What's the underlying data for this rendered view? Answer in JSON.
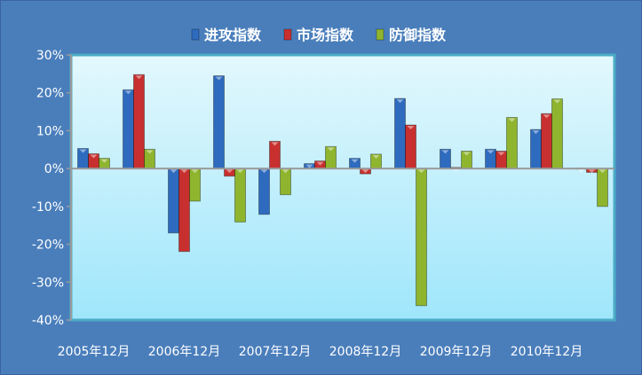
{
  "chart_data": {
    "type": "bar",
    "title": "",
    "xlabel": "",
    "ylabel": "",
    "categories": [
      "2005年12月",
      "",
      "2006年12月",
      "",
      "2007年12月",
      "",
      "2008年12月",
      "",
      "2009年12月",
      "",
      "2010年12月",
      ""
    ],
    "series": [
      {
        "name": "进攻指数",
        "color": "#2e6bbf",
        "values": [
          5.3,
          20.8,
          -17.0,
          24.5,
          -12.1,
          1.3,
          2.7,
          18.5,
          5.1,
          5.1,
          10.3,
          0.1
        ]
      },
      {
        "name": "市场指数",
        "color": "#c8302f",
        "values": [
          3.9,
          24.8,
          -21.9,
          -2.0,
          7.2,
          2.0,
          -1.4,
          11.5,
          0.3,
          4.6,
          14.5,
          -1.0
        ]
      },
      {
        "name": "防御指数",
        "color": "#8fb52e",
        "values": [
          2.7,
          5.1,
          -8.6,
          -14.1,
          -6.9,
          5.8,
          3.8,
          -36.2,
          4.6,
          13.5,
          18.4,
          -10.0
        ]
      }
    ],
    "ylim": [
      -40,
      30
    ],
    "yticks": [
      "30%",
      "20%",
      "10%",
      "0%",
      "-10%",
      "-20%",
      "-30%",
      "-40%"
    ],
    "ytick_values": [
      30,
      20,
      10,
      0,
      -10,
      -20,
      -30,
      -40
    ],
    "grid": false,
    "legend_position": "top",
    "colors": {
      "background": "#4a7ebb",
      "plot_top": "#e3f8fd",
      "plot_bottom": "#9fe6fb",
      "plot_border": "#4bacc6"
    }
  }
}
